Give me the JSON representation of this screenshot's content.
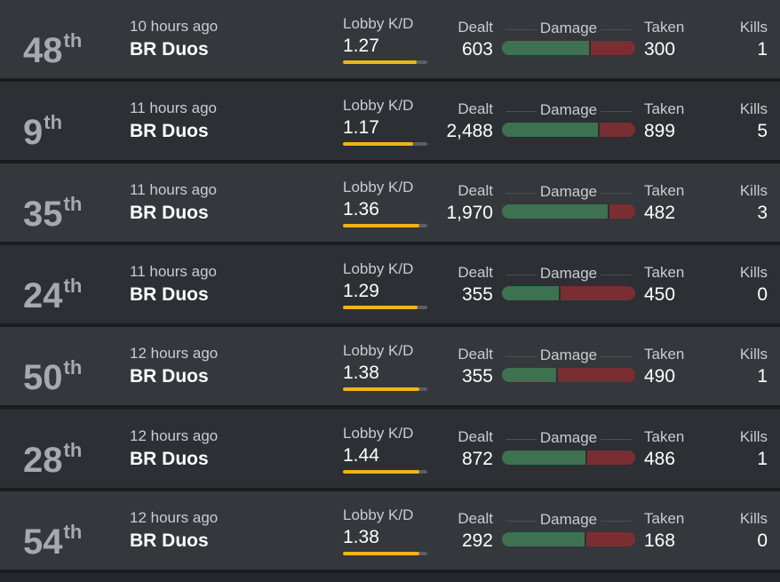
{
  "labels": {
    "lobby_kd": "Lobby K/D",
    "dealt": "Dealt",
    "damage": "Damage",
    "taken": "Taken",
    "kills": "Kills"
  },
  "colors": {
    "kd_bar": "#f1b418",
    "damage_dealt": "#3d7150",
    "damage_taken": "#7a2e32"
  },
  "matches": [
    {
      "place": "48",
      "suffix": "th",
      "time": "10 hours ago",
      "mode": "BR Duos",
      "kd": "1.27",
      "kd_fill_pct": 87,
      "dealt": "603",
      "taken": "300",
      "kills": "1"
    },
    {
      "place": "9",
      "suffix": "th",
      "time": "11 hours ago",
      "mode": "BR Duos",
      "kd": "1.17",
      "kd_fill_pct": 83,
      "dealt": "2,488",
      "taken": "899",
      "kills": "5"
    },
    {
      "place": "35",
      "suffix": "th",
      "time": "11 hours ago",
      "mode": "BR Duos",
      "kd": "1.36",
      "kd_fill_pct": 91,
      "dealt": "1,970",
      "taken": "482",
      "kills": "3"
    },
    {
      "place": "24",
      "suffix": "th",
      "time": "11 hours ago",
      "mode": "BR Duos",
      "kd": "1.29",
      "kd_fill_pct": 88,
      "dealt": "355",
      "taken": "450",
      "kills": "0"
    },
    {
      "place": "50",
      "suffix": "th",
      "time": "12 hours ago",
      "mode": "BR Duos",
      "kd": "1.38",
      "kd_fill_pct": 91,
      "dealt": "355",
      "taken": "490",
      "kills": "1"
    },
    {
      "place": "28",
      "suffix": "th",
      "time": "12 hours ago",
      "mode": "BR Duos",
      "kd": "1.44",
      "kd_fill_pct": 91,
      "dealt": "872",
      "taken": "486",
      "kills": "1"
    },
    {
      "place": "54",
      "suffix": "th",
      "time": "12 hours ago",
      "mode": "BR Duos",
      "kd": "1.38",
      "kd_fill_pct": 91,
      "dealt": "292",
      "taken": "168",
      "kills": "0"
    }
  ]
}
